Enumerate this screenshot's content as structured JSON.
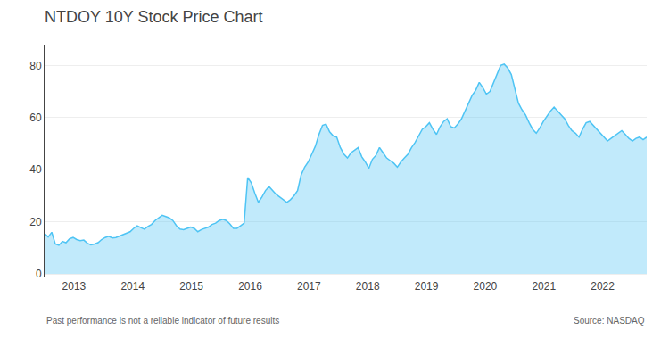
{
  "chart_data": {
    "type": "area",
    "title": "NTDOY 10Y Stock Price Chart",
    "color": "#4EC4F4",
    "grid": true,
    "annotations": [
      "Past performance is not a reliable indicator of future results",
      "Source: NASDAQ"
    ],
    "xlim": [
      2012.5,
      2022.75
    ],
    "xticks": [
      2013,
      2014,
      2015,
      2016,
      2017,
      2018,
      2019,
      2020,
      2021,
      2022
    ],
    "ylim": [
      -1,
      88
    ],
    "yticks": [
      0,
      20,
      40,
      60,
      80
    ],
    "x": [
      2012.5,
      2012.5607,
      2012.6213,
      2012.682,
      2012.7426,
      2012.8033,
      2012.8639,
      2012.9246,
      2012.9852,
      2013.0459,
      2013.1065,
      2013.1672,
      2013.2278,
      2013.2885,
      2013.3491,
      2013.4098,
      2013.4704,
      2013.5311,
      2013.5917,
      2013.6524,
      2013.713,
      2013.7737,
      2013.8343,
      2013.895,
      2013.9556,
      2014.0163,
      2014.0769,
      2014.1376,
      2014.1982,
      2014.2589,
      2014.3195,
      2014.3802,
      2014.4408,
      2014.5015,
      2014.5621,
      2014.6228,
      2014.6834,
      2014.7441,
      2014.8047,
      2014.8654,
      2014.926,
      2014.9867,
      2015.0473,
      2015.108,
      2015.1686,
      2015.2293,
      2015.2899,
      2015.3506,
      2015.4112,
      2015.4719,
      2015.5325,
      2015.5932,
      2015.6538,
      2015.7145,
      2015.7751,
      2015.8358,
      2015.8964,
      2015.9571,
      2016.0178,
      2016.0784,
      2016.1391,
      2016.1997,
      2016.2604,
      2016.321,
      2016.3817,
      2016.4423,
      2016.503,
      2016.5636,
      2016.6243,
      2016.6849,
      2016.7456,
      2016.8062,
      2016.8669,
      2016.9275,
      2016.9882,
      2017.0488,
      2017.1095,
      2017.1701,
      2017.2308,
      2017.2914,
      2017.3521,
      2017.4127,
      2017.4734,
      2017.534,
      2017.5947,
      2017.6553,
      2017.716,
      2017.7766,
      2017.8373,
      2017.8979,
      2017.9586,
      2018.0192,
      2018.0799,
      2018.1405,
      2018.2012,
      2018.2618,
      2018.3225,
      2018.3831,
      2018.4438,
      2018.5044,
      2018.5651,
      2018.6257,
      2018.6864,
      2018.747,
      2018.8077,
      2018.8683,
      2018.929,
      2018.9896,
      2019.0503,
      2019.1109,
      2019.1716,
      2019.2322,
      2019.2929,
      2019.3536,
      2019.4142,
      2019.4749,
      2019.5355,
      2019.5962,
      2019.6568,
      2019.7175,
      2019.7781,
      2019.8388,
      2019.8994,
      2019.9601,
      2020.0207,
      2020.0814,
      2020.142,
      2020.2027,
      2020.2633,
      2020.324,
      2020.3846,
      2020.4453,
      2020.5059,
      2020.5666,
      2020.6272,
      2020.6879,
      2020.7485,
      2020.8092,
      2020.8698,
      2020.9305,
      2020.9911,
      2021.0518,
      2021.1124,
      2021.1731,
      2021.2337,
      2021.2944,
      2021.355,
      2021.4157,
      2021.4763,
      2021.537,
      2021.5976,
      2021.6583,
      2021.7189,
      2021.7796,
      2021.8402,
      2021.9009,
      2021.9615,
      2022.0222,
      2022.0828,
      2022.1435,
      2022.2041,
      2022.2648,
      2022.3254,
      2022.3861,
      2022.4467,
      2022.5074,
      2022.568,
      2022.6287,
      2022.6893,
      2022.75
    ],
    "values": [
      15.5,
      14.2,
      16.0,
      11.5,
      11.0,
      12.5,
      12.0,
      13.5,
      14.0,
      13.2,
      12.8,
      13.0,
      11.8,
      11.2,
      11.5,
      12.0,
      13.2,
      14.0,
      14.5,
      13.8,
      14.0,
      14.5,
      15.0,
      15.5,
      16.2,
      17.5,
      18.5,
      17.8,
      17.2,
      18.2,
      19.0,
      20.5,
      21.5,
      22.5,
      22.0,
      21.5,
      20.5,
      18.5,
      17.2,
      17.0,
      17.5,
      18.0,
      17.5,
      16.2,
      17.0,
      17.5,
      18.0,
      19.0,
      19.5,
      20.5,
      21.0,
      20.5,
      19.2,
      17.5,
      17.5,
      18.5,
      19.5,
      37.0,
      35.0,
      31.0,
      27.5,
      29.5,
      32.0,
      33.5,
      32.0,
      30.5,
      29.5,
      28.5,
      27.5,
      28.5,
      30.0,
      32.0,
      38.0,
      41.0,
      43.0,
      46.0,
      49.0,
      53.5,
      57.0,
      57.5,
      54.5,
      53.0,
      52.5,
      48.5,
      46.0,
      44.5,
      46.5,
      47.5,
      48.5,
      45.0,
      43.0,
      40.5,
      44.0,
      45.5,
      48.5,
      46.5,
      44.5,
      43.5,
      42.5,
      41.0,
      43.0,
      44.5,
      46.0,
      48.5,
      50.5,
      53.0,
      55.5,
      56.5,
      58.0,
      55.5,
      53.5,
      56.5,
      58.5,
      59.5,
      56.5,
      56.0,
      57.5,
      59.5,
      62.5,
      66.0,
      68.5,
      70.5,
      73.5,
      71.5,
      69.0,
      70.0,
      73.5,
      77.0,
      80.0,
      80.5,
      79.0,
      76.5,
      71.0,
      65.5,
      63.0,
      61.0,
      58.0,
      55.5,
      54.0,
      56.0,
      58.5,
      60.5,
      62.5,
      64.0,
      62.5,
      61.0,
      59.5,
      57.0,
      55.0,
      54.0,
      52.5,
      55.5,
      58.0,
      58.5,
      57.0,
      55.5,
      54.0,
      52.5,
      51.0,
      52.0,
      53.0,
      54.0,
      55.0,
      53.5,
      52.0,
      51.0,
      52.0,
      52.5,
      51.5,
      52.5
    ]
  }
}
